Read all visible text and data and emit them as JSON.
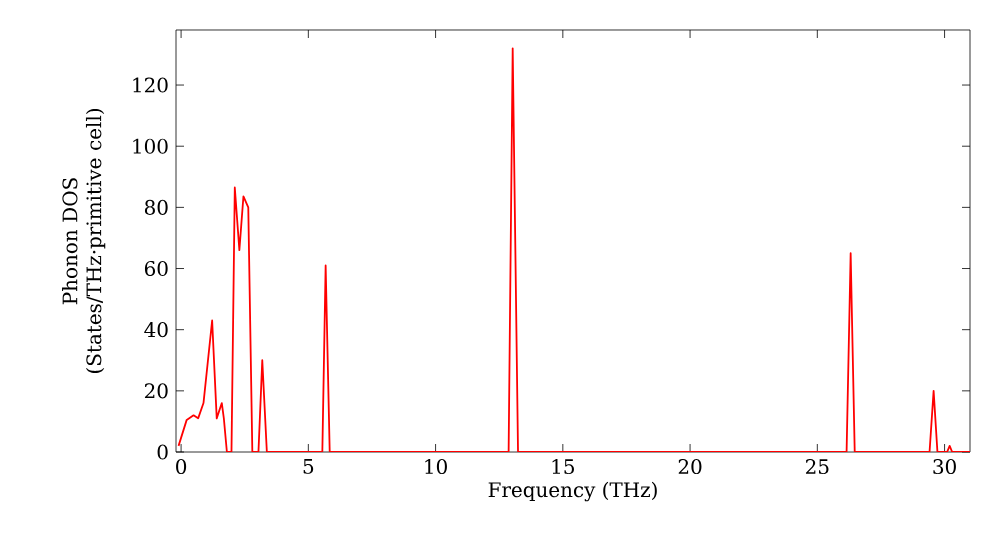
{
  "chart_data": {
    "type": "line",
    "xlabel": "Frequency (THz)",
    "ylabel": "Phonon DOS (States/THz·primitive cell)",
    "x": [
      -0.1,
      0.22,
      0.49,
      0.67,
      0.88,
      1.22,
      1.4,
      1.6,
      1.68,
      1.8,
      1.98,
      2.11,
      2.29,
      2.45,
      2.64,
      2.8,
      3.04,
      3.19,
      3.37,
      5.55,
      5.68,
      5.84,
      12.87,
      13.03,
      13.24,
      26.15,
      26.31,
      26.47,
      29.41,
      29.57,
      29.72,
      30.1,
      30.2,
      30.3,
      31.0
    ],
    "series": [
      {
        "color": "#ff0000",
        "values": [
          2,
          10.5,
          12,
          11,
          16,
          43,
          11,
          16,
          11,
          0,
          0,
          86.5,
          66,
          83.6,
          80,
          0,
          0,
          30,
          0,
          0,
          61,
          0,
          0,
          132,
          0,
          0,
          65,
          0,
          0,
          20,
          0,
          0,
          2,
          0,
          0
        ]
      }
    ],
    "xlim": [
      -0.2,
      31
    ],
    "ylim": [
      0,
      138
    ],
    "xticks": [
      0,
      5,
      10,
      15,
      20,
      25,
      30
    ],
    "yticks": [
      0,
      20,
      40,
      60,
      80,
      100,
      120
    ],
    "grid": false,
    "marker": "none",
    "line_style": "solid"
  }
}
